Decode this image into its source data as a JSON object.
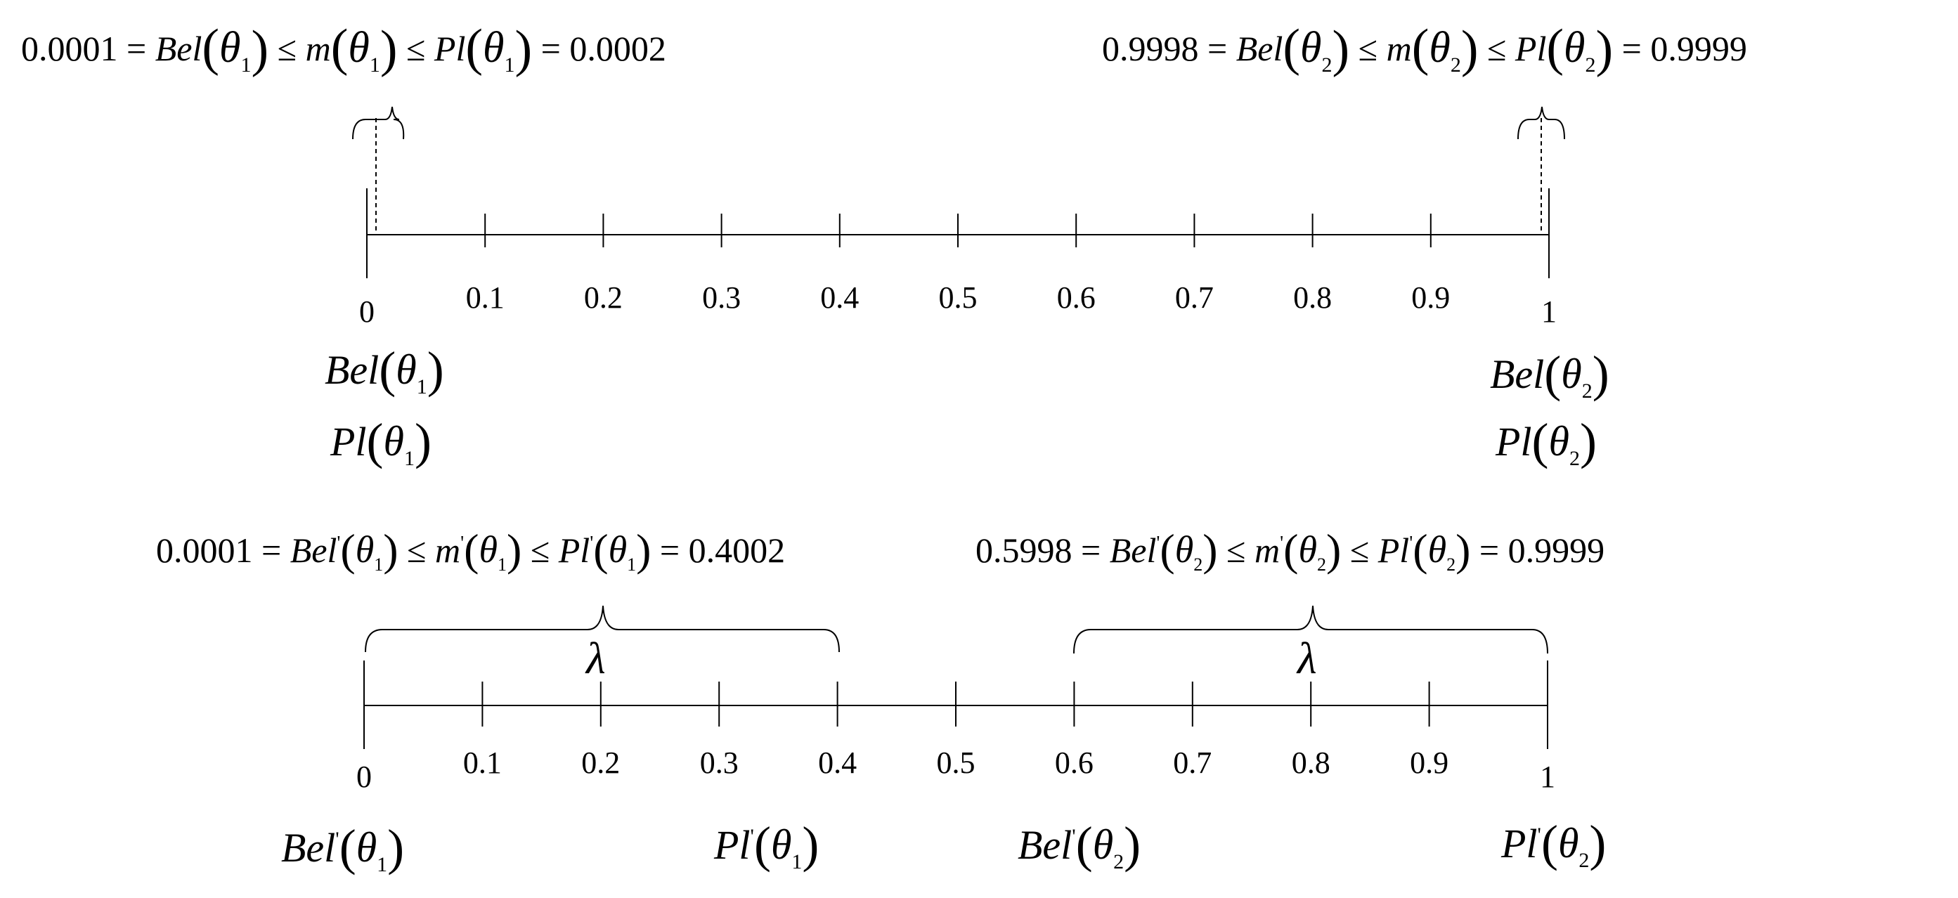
{
  "tick_labels": [
    "0",
    "0.1",
    "0.2",
    "0.3",
    "0.4",
    "0.5",
    "0.6",
    "0.7",
    "0.8",
    "0.9",
    "1"
  ],
  "top": {
    "equation_left": {
      "value_left": "0.0001",
      "bel": "Bel",
      "m": "m",
      "pl": "Pl",
      "theta": "θ",
      "sub": "1",
      "value_right": "0.0002"
    },
    "equation_right": {
      "value_left": "0.9998",
      "bel": "Bel",
      "m": "m",
      "pl": "Pl",
      "theta": "θ",
      "sub": "2",
      "value_right": "0.9999"
    },
    "label_left_bel": "Bel",
    "label_left_pl": "Pl",
    "label_left_sub": "1",
    "label_right_bel": "Bel",
    "label_right_pl": "Pl",
    "label_right_sub": "2",
    "theta": "θ"
  },
  "bottom": {
    "equation_left": {
      "value_left": "0.0001",
      "bel": "Bel",
      "m": "m",
      "pl": "Pl",
      "prime": "'",
      "theta": "θ",
      "sub": "1",
      "value_right": "0.4002"
    },
    "equation_right": {
      "value_left": "0.5998",
      "bel": "Bel",
      "m": "m",
      "pl": "Pl",
      "prime": "'",
      "theta": "θ",
      "sub": "2",
      "value_right": "0.9999"
    },
    "lambda": "λ",
    "labels": [
      {
        "fn": "Bel",
        "prime": "'",
        "theta": "θ",
        "sub": "1"
      },
      {
        "fn": "Pl",
        "prime": "'",
        "theta": "θ",
        "sub": "1"
      },
      {
        "fn": "Bel",
        "prime": "'",
        "theta": "θ",
        "sub": "2"
      },
      {
        "fn": "Pl",
        "prime": "'",
        "theta": "θ",
        "sub": "2"
      }
    ]
  },
  "symbols": {
    "eq": "=",
    "leq": "≤",
    "lparen": "(",
    "rparen": ")"
  }
}
